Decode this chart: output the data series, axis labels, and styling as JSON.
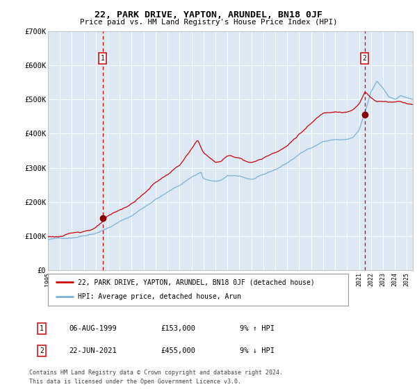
{
  "title": "22, PARK DRIVE, YAPTON, ARUNDEL, BN18 0JF",
  "subtitle": "Price paid vs. HM Land Registry's House Price Index (HPI)",
  "legend_line1": "22, PARK DRIVE, YAPTON, ARUNDEL, BN18 0JF (detached house)",
  "legend_line2": "HPI: Average price, detached house, Arun",
  "annotation1_label": "1",
  "annotation1_date": "06-AUG-1999",
  "annotation1_price": "£153,000",
  "annotation1_hpi": "9% ↑ HPI",
  "annotation2_label": "2",
  "annotation2_date": "22-JUN-2021",
  "annotation2_price": "£455,000",
  "annotation2_hpi": "9% ↓ HPI",
  "footer": "Contains HM Land Registry data © Crown copyright and database right 2024.\nThis data is licensed under the Open Government Licence v3.0.",
  "plot_bg": "#dce9f5",
  "fig_bg": "#ffffff",
  "grid_color": "#ffffff",
  "red_line_color": "#cc0000",
  "blue_line_color": "#7ab0d4",
  "dashed_line_color": "#cc0000",
  "marker_color": "#8b0000",
  "ylim": [
    0,
    700000
  ],
  "yticks": [
    0,
    100000,
    200000,
    300000,
    400000,
    500000,
    600000,
    700000
  ],
  "ytick_labels": [
    "£0",
    "£100K",
    "£200K",
    "£300K",
    "£400K",
    "£500K",
    "£600K",
    "£700K"
  ],
  "sale1_year": 1999.58,
  "sale1_price": 153000,
  "sale2_year": 2021.47,
  "sale2_price": 455000,
  "xmin": 1995.0,
  "xmax": 2025.5
}
